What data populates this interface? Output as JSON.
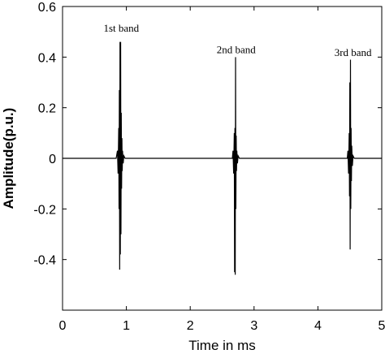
{
  "chart_data": {
    "type": "line",
    "title": "",
    "xlabel": "Time in ms",
    "ylabel": "Amplitude(p.u.)",
    "xlim": [
      0,
      5
    ],
    "ylim": [
      -0.6,
      0.6
    ],
    "grid": false,
    "x_ticks": [
      "0",
      "1",
      "2",
      "3",
      "4",
      "5"
    ],
    "y_ticks": [
      "-0.4",
      "-0.2",
      "0",
      "0.2",
      "0.4",
      "0.6"
    ],
    "series": [
      {
        "x": [
          0,
          0.84,
          0.86,
          0.87,
          0.88,
          0.885,
          0.89,
          0.895,
          0.9,
          0.905,
          0.91,
          0.915,
          0.92,
          0.925,
          0.93,
          0.935,
          0.94,
          0.95,
          0.96,
          0.98,
          1.0,
          2.66,
          2.67,
          2.68,
          2.69,
          2.695,
          2.7,
          2.705,
          2.71,
          2.715,
          2.72,
          2.725,
          2.73,
          2.74,
          2.75,
          2.77,
          2.8,
          4.46,
          4.47,
          4.48,
          4.49,
          4.495,
          4.5,
          4.505,
          4.51,
          4.515,
          4.52,
          4.525,
          4.53,
          4.54,
          4.55,
          4.57,
          4.6,
          5.0
        ],
        "y": [
          0,
          0,
          0.03,
          -0.06,
          0.12,
          -0.2,
          0.27,
          -0.44,
          0.46,
          -0.38,
          0.46,
          -0.3,
          0.18,
          -0.12,
          0.08,
          -0.05,
          0.03,
          -0.02,
          0.01,
          0,
          0,
          0,
          0.03,
          -0.06,
          0.1,
          -0.45,
          0.12,
          -0.46,
          0.4,
          -0.2,
          0.09,
          -0.05,
          0.03,
          -0.02,
          0.01,
          0,
          0,
          0,
          0.03,
          -0.06,
          0.1,
          -0.15,
          0.3,
          -0.36,
          0.39,
          -0.2,
          0.12,
          -0.09,
          0.05,
          -0.03,
          0.01,
          0,
          0,
          0
        ]
      }
    ],
    "annotations": [
      {
        "text": "1st band",
        "x": 0.92,
        "y": 0.5
      },
      {
        "text": "2nd band",
        "x": 2.72,
        "y": 0.415
      },
      {
        "text": "3rd band",
        "x": 4.55,
        "y": 0.405
      }
    ]
  }
}
